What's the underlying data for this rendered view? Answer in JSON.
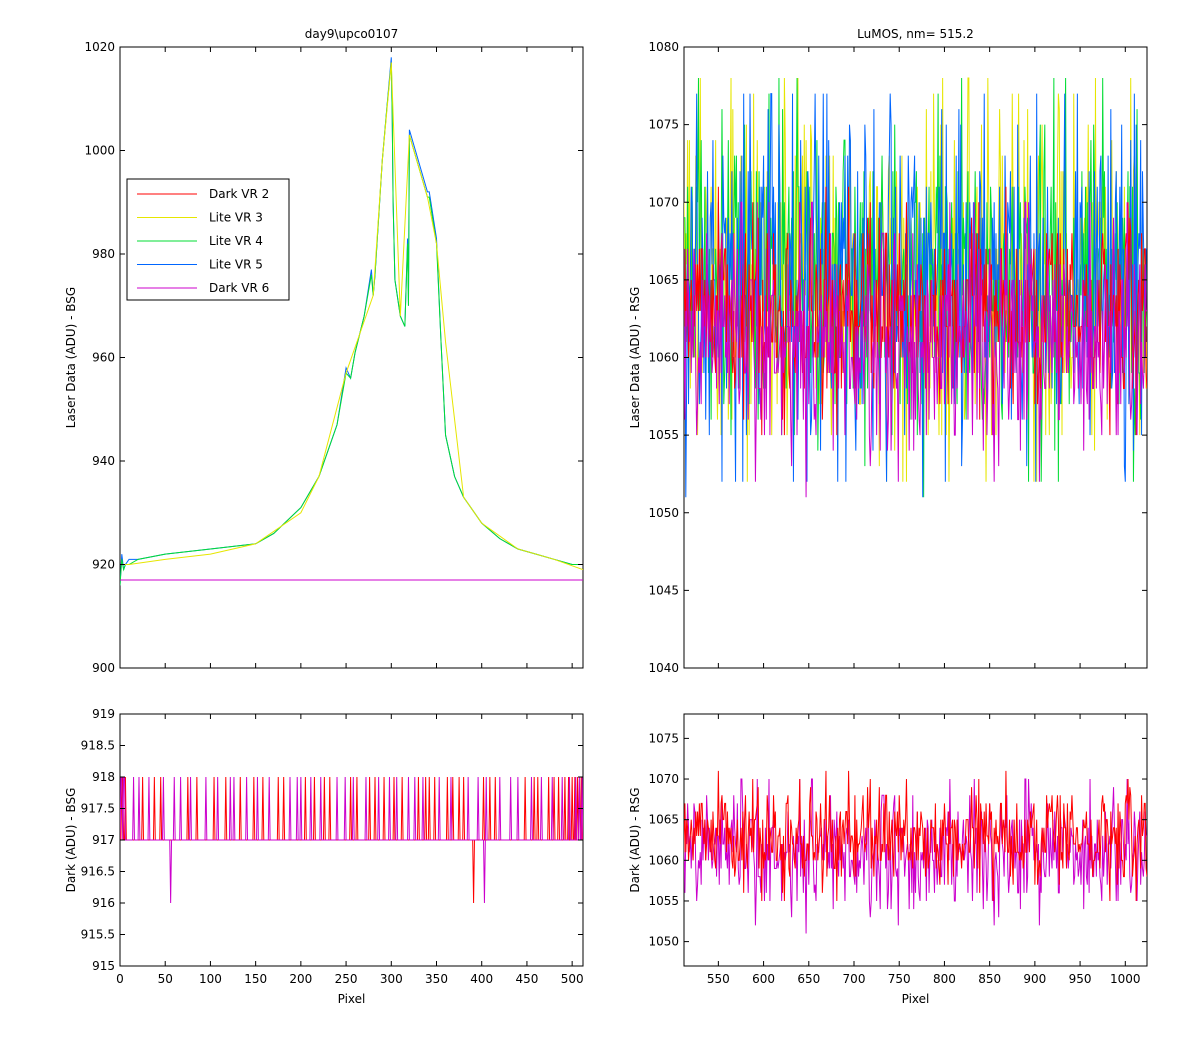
{
  "chart_data": [
    {
      "id": "tl",
      "type": "line",
      "title": "day9\\upco0107",
      "xlabel": "",
      "ylabel": "Laser Data (ADU) - BSG",
      "xlim": [
        0,
        512
      ],
      "ylim": [
        900,
        1020
      ],
      "xticks": [],
      "xtick_labels": [],
      "yticks": [
        900,
        920,
        940,
        960,
        980,
        1000,
        1020
      ],
      "ytick_labels": [
        "900",
        "920",
        "940",
        "960",
        "980",
        "1000",
        "1020"
      ],
      "grid": false,
      "legend": {
        "placement": "upper-left",
        "entries": [
          "Dark VR 2",
          "Lite VR 3",
          "Lite VR 4",
          "Lite VR 5",
          "Dark VR 6"
        ]
      },
      "series": [
        {
          "name": "Lite VR 5",
          "color": "#0066ff",
          "x": [
            0,
            2,
            4,
            6,
            10,
            20,
            50,
            100,
            150,
            170,
            200,
            220,
            240,
            250,
            255,
            260,
            270,
            278,
            280,
            282,
            290,
            295,
            300,
            301,
            302,
            304,
            310,
            315,
            318,
            319,
            320,
            340,
            342,
            350,
            355,
            360,
            370,
            380,
            400,
            420,
            440,
            460,
            480,
            500,
            512
          ],
          "values": [
            916,
            922,
            919,
            920,
            921,
            921,
            922,
            923,
            924,
            926,
            931,
            937,
            947,
            958,
            956,
            961,
            968,
            977,
            972,
            976,
            998,
            1008,
            1018,
            1007,
            990,
            975,
            968,
            966,
            983,
            970,
            1004,
            992,
            992,
            983,
            963,
            945,
            937,
            933,
            928,
            925,
            923,
            922,
            921,
            920,
            920
          ]
        },
        {
          "name": "Lite VR 4",
          "color": "#00dd33",
          "x": [
            0,
            2,
            4,
            6,
            10,
            20,
            50,
            100,
            150,
            170,
            200,
            220,
            240,
            250,
            255,
            260,
            270,
            278,
            280,
            282,
            290,
            295,
            300,
            301,
            302,
            304,
            310,
            315,
            318,
            319,
            320,
            340,
            342,
            350,
            355,
            360,
            370,
            380,
            400,
            420,
            440,
            460,
            480,
            500,
            512
          ],
          "values": [
            916,
            921,
            919,
            920,
            920,
            921,
            922,
            923,
            924,
            926,
            931,
            937,
            947,
            957,
            956,
            961,
            968,
            976,
            972,
            976,
            998,
            1008,
            1017,
            1007,
            990,
            975,
            968,
            966,
            982,
            970,
            1003,
            991,
            991,
            982,
            963,
            945,
            937,
            933,
            928,
            925,
            923,
            922,
            921,
            920,
            920
          ]
        },
        {
          "name": "Lite VR 3",
          "color": "#e6e600",
          "x": [
            0,
            10,
            50,
            100,
            150,
            200,
            220,
            250,
            270,
            280,
            290,
            300,
            310,
            320,
            340,
            350,
            360,
            380,
            400,
            440,
            480,
            512
          ],
          "values": [
            920,
            920,
            921,
            922,
            924,
            930,
            937,
            957,
            967,
            972,
            998,
            1017,
            968,
            1003,
            991,
            982,
            963,
            933,
            928,
            923,
            921,
            919
          ]
        },
        {
          "name": "Dark VR 2",
          "color": "#ff0000",
          "x": [
            0,
            512
          ],
          "values": [
            917,
            917
          ]
        },
        {
          "name": "Dark VR 6",
          "color": "#cc00cc",
          "x": [
            0,
            512
          ],
          "values": [
            917,
            917
          ]
        }
      ]
    },
    {
      "id": "tr",
      "type": "line",
      "title": "LuMOS, nm= 515.2",
      "xlabel": "",
      "ylabel": "Laser Data (ADU) - RSG",
      "xlim": [
        512,
        1024
      ],
      "ylim": [
        1040,
        1080
      ],
      "xticks": [],
      "xtick_labels": [],
      "yticks": [
        1040,
        1045,
        1050,
        1055,
        1060,
        1065,
        1070,
        1075,
        1080
      ],
      "ytick_labels": [
        "1040",
        "1045",
        "1050",
        "1055",
        "1060",
        "1065",
        "1070",
        "1075",
        "1080"
      ],
      "grid": false,
      "series": [
        {
          "name": "Lite VR 3",
          "color": "#e6e600",
          "noise": {
            "mean": 1065,
            "spread": 5,
            "min": 1049,
            "max": 1080,
            "seed": 3
          }
        },
        {
          "name": "Lite VR 4",
          "color": "#00dd33",
          "noise": {
            "mean": 1065,
            "spread": 5,
            "min": 1049,
            "max": 1078,
            "seed": 4
          }
        },
        {
          "name": "Lite VR 5",
          "color": "#0066ff",
          "noise": {
            "mean": 1065,
            "spread": 5,
            "min": 1051,
            "max": 1077,
            "seed": 5
          }
        },
        {
          "name": "Dark VR 2",
          "color": "#ff0000",
          "noise": {
            "mean": 1063,
            "spread": 3,
            "min": 1052,
            "max": 1074,
            "seed": 2
          }
        },
        {
          "name": "Dark VR 6",
          "color": "#cc00cc",
          "noise": {
            "mean": 1061,
            "spread": 3.5,
            "min": 1048,
            "max": 1077,
            "seed": 6
          }
        }
      ]
    },
    {
      "id": "bl",
      "type": "line",
      "title": "",
      "xlabel": "Pixel",
      "ylabel": "Dark (ADU) - BSG",
      "xlim": [
        0,
        512
      ],
      "ylim": [
        915,
        919
      ],
      "xticks": [
        0,
        50,
        100,
        150,
        200,
        250,
        300,
        350,
        400,
        450,
        500
      ],
      "xtick_labels": [
        "0",
        "50",
        "100",
        "150",
        "200",
        "250",
        "300",
        "350",
        "400",
        "450",
        "500"
      ],
      "yticks": [
        915,
        915.5,
        916,
        916.5,
        917,
        917.5,
        918,
        918.5,
        919
      ],
      "ytick_labels": [
        "915",
        "915.5",
        "916",
        "916.5",
        "917",
        "917.5",
        "918",
        "918.5",
        "919"
      ],
      "grid": false,
      "series": [
        {
          "name": "Dark VR 2",
          "color": "#ff0000",
          "baseline": 917,
          "spike_value": 918,
          "spike_x": [
            2,
            3,
            6,
            25,
            38,
            45,
            75,
            85,
            104,
            117,
            133,
            148,
            158,
            175,
            181,
            205,
            215,
            226,
            232,
            255,
            262,
            276,
            282,
            292,
            303,
            312,
            330,
            338,
            342,
            348,
            362,
            368,
            375,
            380,
            402,
            409,
            415,
            448,
            458,
            462,
            474,
            480,
            485,
            492,
            496,
            500,
            503,
            506,
            510
          ],
          "dip_x": [
            391
          ],
          "dip_value": 916
        },
        {
          "name": "Dark VR 6",
          "color": "#cc00cc",
          "baseline": 917,
          "spike_value": 918,
          "spike_x": [
            1,
            2,
            4,
            5,
            15,
            21,
            32,
            48,
            60,
            67,
            78,
            95,
            108,
            122,
            126,
            140,
            152,
            165,
            188,
            196,
            200,
            211,
            222,
            240,
            249,
            258,
            272,
            286,
            298,
            306,
            319,
            326,
            335,
            353,
            366,
            385,
            396,
            405,
            420,
            432,
            440,
            455,
            466,
            478,
            489,
            497,
            504,
            508,
            511
          ],
          "dip_x": [
            56,
            403
          ],
          "dip_value": 916
        }
      ]
    },
    {
      "id": "br",
      "type": "line",
      "title": "",
      "xlabel": "Pixel",
      "ylabel": "Dark (ADU) - RSG",
      "xlim": [
        512,
        1024
      ],
      "ylim": [
        1047,
        1078
      ],
      "xticks": [
        550,
        600,
        650,
        700,
        750,
        800,
        850,
        900,
        950,
        1000
      ],
      "xtick_labels": [
        "550",
        "600",
        "650",
        "700",
        "750",
        "800",
        "850",
        "900",
        "950",
        "1000"
      ],
      "yticks": [
        1050,
        1055,
        1060,
        1065,
        1070,
        1075
      ],
      "ytick_labels": [
        "1050",
        "1055",
        "1060",
        "1065",
        "1070",
        "1075"
      ],
      "grid": false,
      "series": [
        {
          "name": "Dark VR 6",
          "color": "#cc00cc",
          "noise": {
            "mean": 1061,
            "spread": 3.5,
            "min": 1048,
            "max": 1077,
            "seed": 6
          }
        },
        {
          "name": "Dark VR 2",
          "color": "#ff0000",
          "noise": {
            "mean": 1063,
            "spread": 3,
            "min": 1052,
            "max": 1074,
            "seed": 2
          }
        }
      ]
    }
  ]
}
